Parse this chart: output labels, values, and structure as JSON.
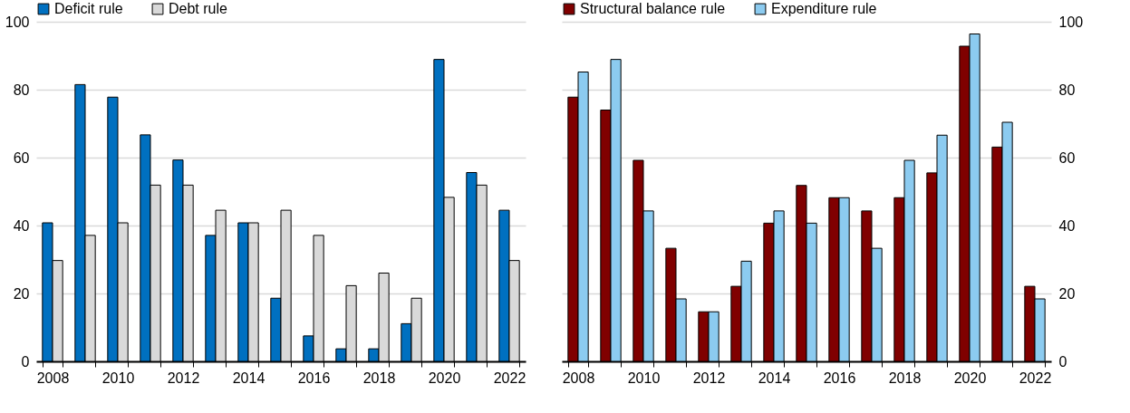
{
  "chart_data": [
    {
      "type": "bar",
      "categories": [
        "2008",
        null,
        "2010",
        null,
        "2012",
        null,
        "2014",
        null,
        "2016",
        null,
        "2018",
        null,
        "2020",
        null,
        "2022"
      ],
      "series": [
        {
          "name": "Deficit rule",
          "color": "#0070c0",
          "values": [
            40.8,
            81.5,
            77.8,
            66.7,
            59.3,
            37.1,
            40.8,
            18.6,
            7.5,
            3.7,
            3.7,
            11.1,
            88.9,
            55.6,
            44.5
          ]
        },
        {
          "name": "Debt rule",
          "color": "#d9d9d9",
          "values": [
            29.7,
            37.1,
            40.8,
            51.9,
            51.9,
            44.5,
            40.8,
            44.5,
            37.1,
            22.3,
            26,
            18.6,
            48.3,
            51.9,
            29.7
          ]
        }
      ],
      "ylim": [
        0,
        100
      ],
      "yticks": [
        0,
        20,
        40,
        60,
        80,
        100
      ],
      "grid": "y",
      "legend": "top"
    },
    {
      "type": "bar",
      "categories": [
        "2008",
        null,
        "2010",
        null,
        "2012",
        null,
        "2014",
        null,
        "2016",
        null,
        "2018",
        null,
        "2020",
        null,
        "2022"
      ],
      "series": [
        {
          "name": "Structural balance rule",
          "color": "#800000",
          "values": [
            77.8,
            74,
            59.2,
            33.3,
            14.6,
            22.1,
            40.7,
            51.8,
            48.2,
            44.3,
            48.2,
            55.5,
            92.8,
            63.1,
            22.1
          ]
        },
        {
          "name": "Expenditure rule",
          "color": "#8ccbf0",
          "values": [
            85.2,
            88.9,
            44.3,
            18.4,
            14.6,
            29.5,
            44.3,
            40.7,
            48.2,
            33.3,
            59.2,
            66.6,
            96.4,
            70.4,
            18.4
          ]
        }
      ],
      "ylim": [
        0,
        100
      ],
      "yticks": [
        0,
        20,
        40,
        60,
        80,
        100
      ],
      "grid": "y",
      "legend": "top"
    }
  ]
}
